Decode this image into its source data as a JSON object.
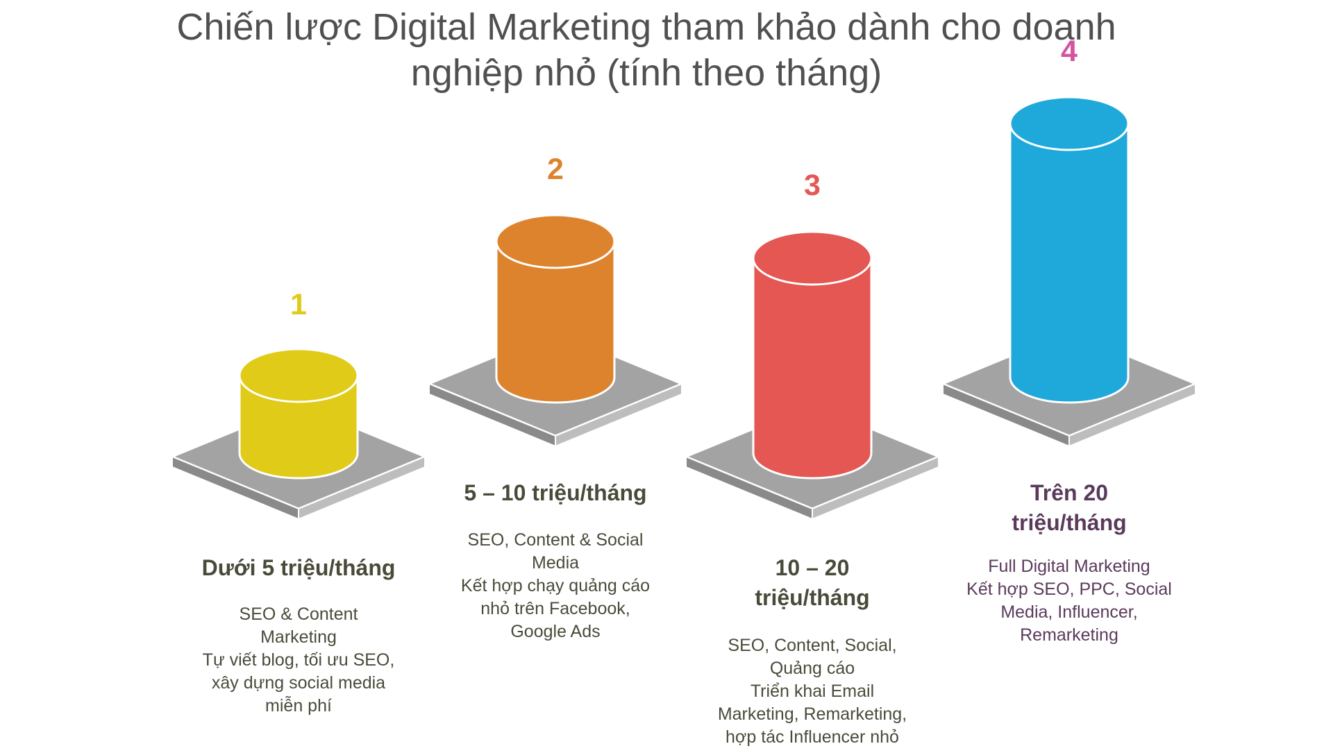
{
  "title": {
    "line1": "Chiến lược Digital Marketing tham khảo dành cho doanh",
    "line2": "nghiệp nhỏ (tính theo tháng)"
  },
  "colors": {
    "tier1": "#e0cb18",
    "tier2": "#dd832e",
    "tier3": "#e45753",
    "tier4": "#1fa9db",
    "num4": "#d6529e",
    "base": "#a3a3a3",
    "text": "#4a4a3a"
  },
  "tiers": [
    {
      "number": "1",
      "label": "Dưới 5 triệu/tháng",
      "desc": [
        "SEO & Content",
        "Marketing",
        "Tự viết blog, tối ưu SEO,",
        "xây dựng social media",
        "miễn phí"
      ],
      "level": 1
    },
    {
      "number": "2",
      "label": "5 – 10 triệu/tháng",
      "desc": [
        "SEO, Content & Social",
        "Media",
        "Kết hợp chạy quảng cáo",
        "nhỏ trên Facebook,",
        "Google Ads"
      ],
      "level": 2
    },
    {
      "number": "3",
      "label_lines": [
        "10 – 20",
        "triệu/tháng"
      ],
      "desc": [
        "SEO, Content, Social,",
        "Quảng cáo",
        "Triển khai Email",
        "Marketing, Remarketing,",
        "hợp tác Influencer nhỏ"
      ],
      "level": 3
    },
    {
      "number": "4",
      "label_lines": [
        "Trên 20",
        "triệu/tháng"
      ],
      "desc": [
        "Full Digital Marketing",
        "Kết hợp SEO, PPC, Social",
        "Media, Influencer,",
        "Remarketing"
      ],
      "level": 4
    }
  ]
}
